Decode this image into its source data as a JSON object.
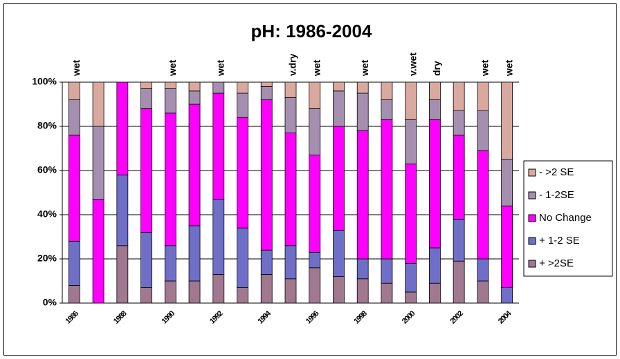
{
  "chart_data": {
    "type": "stacked_bar_100",
    "title": "pH: 1986-2004",
    "categories": [
      "1986",
      null,
      "1988",
      null,
      "1990",
      null,
      "1992",
      null,
      "1994",
      null,
      "1996",
      null,
      "1998",
      null,
      "2000",
      null,
      "2002",
      null,
      "2004"
    ],
    "annotations": [
      "wet",
      null,
      null,
      null,
      "wet",
      null,
      "wet",
      null,
      null,
      "v.dry",
      "wet",
      null,
      "wet",
      null,
      "v.wet",
      "dry",
      null,
      "wet",
      "wet"
    ],
    "series": [
      {
        "name": "+ >2SE",
        "color": "#a07890",
        "values": [
          8,
          0,
          26,
          7,
          10,
          10,
          13,
          7,
          13,
          11,
          16,
          12,
          11,
          9,
          5,
          9,
          19,
          10,
          0
        ]
      },
      {
        "name": "+ 1-2 SE",
        "color": "#6f6fc8",
        "values": [
          20,
          0,
          32,
          25,
          16,
          25,
          34,
          27,
          11,
          15,
          7,
          21,
          9,
          11,
          13,
          16,
          19,
          10,
          7
        ]
      },
      {
        "name": "No Change",
        "color": "#ff00ff",
        "values": [
          48,
          47,
          42,
          56,
          60,
          55,
          48,
          50,
          68,
          51,
          44,
          47,
          58,
          63,
          45,
          58,
          38,
          49,
          37
        ]
      },
      {
        "name": "- 1-2SE",
        "color": "#a58fb0",
        "values": [
          16,
          33,
          0,
          9,
          11,
          6,
          5,
          11,
          6,
          16,
          21,
          16,
          17,
          9,
          20,
          9,
          11,
          18,
          21
        ]
      },
      {
        "name": "- >2 SE",
        "color": "#d9a9a0",
        "values": [
          8,
          20,
          0,
          3,
          3,
          4,
          0,
          5,
          2,
          7,
          12,
          4,
          5,
          8,
          17,
          8,
          13,
          13,
          35
        ]
      }
    ],
    "ylim": [
      0,
      100
    ],
    "yticks": [
      {
        "value": 0,
        "label": "0%"
      },
      {
        "value": 20,
        "label": "20%"
      },
      {
        "value": 40,
        "label": "40%"
      },
      {
        "value": 60,
        "label": "60%"
      },
      {
        "value": 80,
        "label": "80%"
      },
      {
        "value": 100,
        "label": "100%"
      }
    ],
    "grid": true,
    "legend": "right"
  }
}
